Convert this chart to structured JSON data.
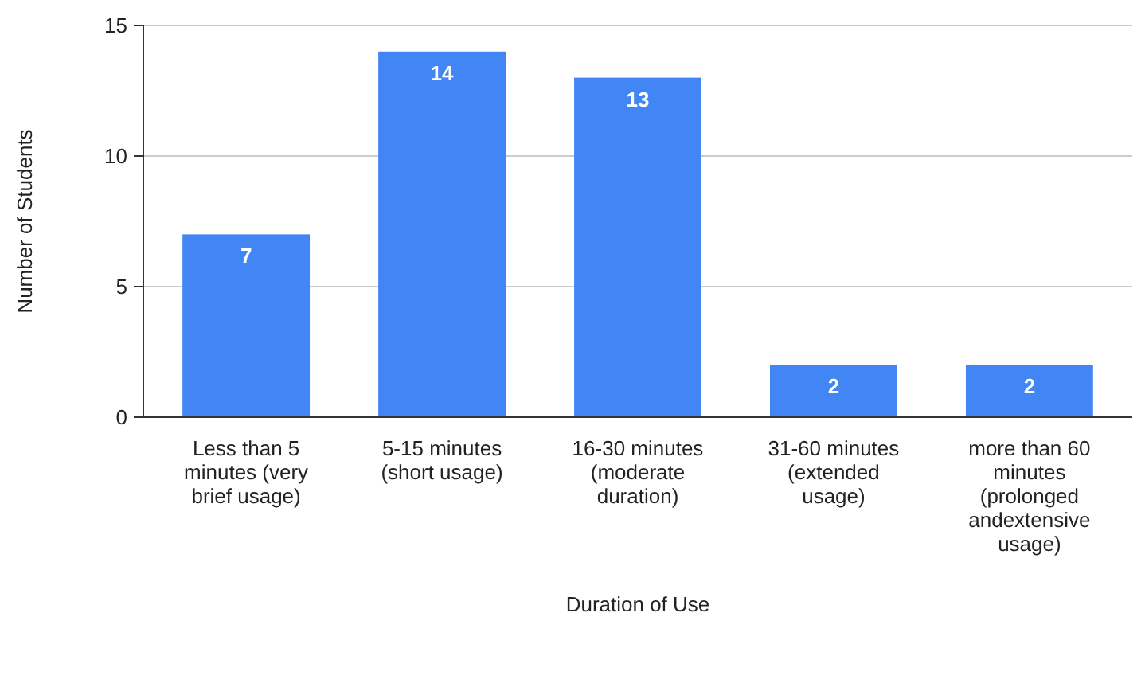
{
  "chart_data": {
    "type": "bar",
    "xlabel": "Duration of Use",
    "ylabel": "Number of Students",
    "categories": [
      "Less than 5 minutes (very brief usage)",
      "5-15 minutes (short usage)",
      "16-30 minutes (moderate duration)",
      "31-60 minutes (extended usage)",
      "more than 60 minutes (prolonged andextensive usage)"
    ],
    "values": [
      7,
      14,
      13,
      2,
      2
    ],
    "color": "#4285f4",
    "ylim": [
      0,
      15
    ],
    "yticks": [
      0,
      5,
      10,
      15
    ],
    "grid": "y",
    "data_labels": true
  }
}
